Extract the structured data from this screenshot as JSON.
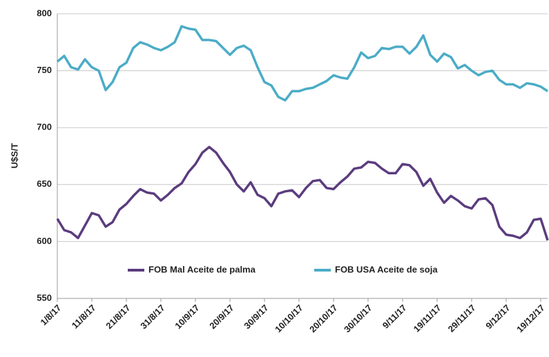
{
  "chart_data": {
    "type": "line",
    "y_label": "U$S/T",
    "x": [
      "2017-08-01",
      "2017-08-03",
      "2017-08-05",
      "2017-08-07",
      "2017-08-09",
      "2017-08-11",
      "2017-08-13",
      "2017-08-15",
      "2017-08-17",
      "2017-08-19",
      "2017-08-21",
      "2017-08-23",
      "2017-08-25",
      "2017-08-27",
      "2017-08-29",
      "2017-08-31",
      "2017-09-02",
      "2017-09-04",
      "2017-09-06",
      "2017-09-08",
      "2017-09-10",
      "2017-09-12",
      "2017-09-14",
      "2017-09-16",
      "2017-09-18",
      "2017-09-20",
      "2017-09-22",
      "2017-09-24",
      "2017-09-26",
      "2017-09-28",
      "2017-09-30",
      "2017-10-02",
      "2017-10-04",
      "2017-10-06",
      "2017-10-08",
      "2017-10-10",
      "2017-10-12",
      "2017-10-14",
      "2017-10-16",
      "2017-10-18",
      "2017-10-20",
      "2017-10-22",
      "2017-10-24",
      "2017-10-26",
      "2017-10-28",
      "2017-10-30",
      "2017-11-01",
      "2017-11-03",
      "2017-11-05",
      "2017-11-07",
      "2017-11-09",
      "2017-11-11",
      "2017-11-13",
      "2017-11-15",
      "2017-11-17",
      "2017-11-19",
      "2017-11-21",
      "2017-11-23",
      "2017-11-25",
      "2017-11-27",
      "2017-11-29",
      "2017-12-01",
      "2017-12-03",
      "2017-12-05",
      "2017-12-07",
      "2017-12-09",
      "2017-12-11",
      "2017-12-13",
      "2017-12-15",
      "2017-12-17",
      "2017-12-19",
      "2017-12-21"
    ],
    "series": [
      {
        "name": "FOB Mal Aceite de palma",
        "color": "#5b3c7e",
        "values": [
          620,
          610,
          608,
          603,
          614,
          625,
          623,
          613,
          617,
          628,
          633,
          640,
          646,
          643,
          642,
          636,
          641,
          647,
          651,
          661,
          668,
          678,
          683,
          678,
          669,
          661,
          650,
          644,
          652,
          641,
          638,
          631,
          642,
          644,
          645,
          639,
          647,
          653,
          654,
          647,
          646,
          652,
          657,
          664,
          665,
          670,
          669,
          664,
          660,
          660,
          668,
          667,
          661,
          649,
          655,
          643,
          634,
          640,
          636,
          631,
          629,
          637,
          638,
          632,
          613,
          606,
          605,
          603,
          608,
          619,
          620,
          601
        ]
      },
      {
        "name": "FOB USA Aceite de soja",
        "color": "#4bacc6",
        "values": [
          758,
          763,
          753,
          751,
          760,
          753,
          750,
          733,
          740,
          753,
          757,
          770,
          775,
          773,
          770,
          768,
          771,
          775,
          789,
          787,
          786,
          777,
          777,
          776,
          770,
          764,
          770,
          772,
          768,
          753,
          740,
          737,
          727,
          724,
          732,
          732,
          734,
          735,
          738,
          741,
          746,
          744,
          743,
          753,
          766,
          761,
          763,
          770,
          769,
          771,
          771,
          765,
          771,
          781,
          764,
          758,
          765,
          762,
          752,
          755,
          750,
          746,
          749,
          750,
          742,
          738,
          738,
          735,
          739,
          738,
          736,
          732
        ]
      }
    ],
    "xlim": [
      "2017-08-01",
      "2017-12-21"
    ],
    "xticks": [
      {
        "value": "2017-08-01",
        "label": "1/8/17"
      },
      {
        "value": "2017-08-11",
        "label": "11/8/17"
      },
      {
        "value": "2017-08-21",
        "label": "21/8/17"
      },
      {
        "value": "2017-08-31",
        "label": "31/8/17"
      },
      {
        "value": "2017-09-10",
        "label": "10/9/17"
      },
      {
        "value": "2017-09-20",
        "label": "20/9/17"
      },
      {
        "value": "2017-09-30",
        "label": "30/9/17"
      },
      {
        "value": "2017-10-10",
        "label": "10/10/17"
      },
      {
        "value": "2017-10-20",
        "label": "20/10/17"
      },
      {
        "value": "2017-10-30",
        "label": "30/10/17"
      },
      {
        "value": "2017-11-09",
        "label": "9/11/17"
      },
      {
        "value": "2017-11-19",
        "label": "19/11/17"
      },
      {
        "value": "2017-11-29",
        "label": "29/11/17"
      },
      {
        "value": "2017-12-09",
        "label": "9/12/17"
      },
      {
        "value": "2017-12-19",
        "label": "19/12/17"
      }
    ],
    "ylim": [
      550,
      800
    ],
    "yticks": [
      550,
      600,
      650,
      700,
      750,
      800
    ],
    "grid": true
  }
}
